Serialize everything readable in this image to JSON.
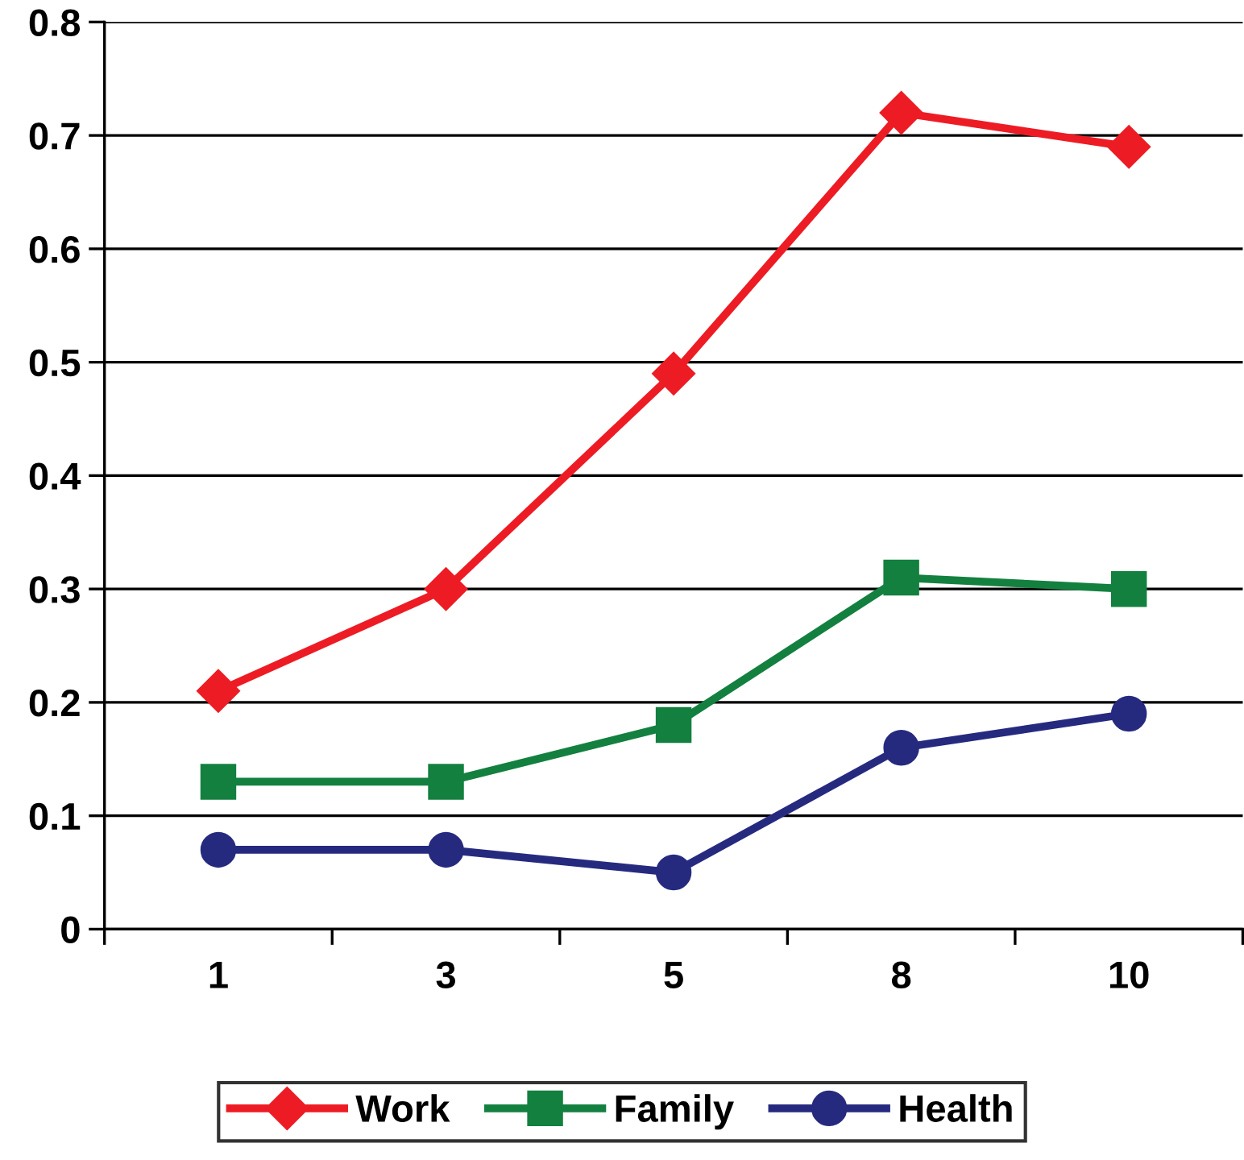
{
  "chart_data": {
    "type": "line",
    "categories": [
      "1",
      "3",
      "5",
      "8",
      "10"
    ],
    "series": [
      {
        "name": "Work",
        "color": "#ed1c24",
        "marker": "diamond",
        "values": [
          0.21,
          0.3,
          0.49,
          0.72,
          0.69
        ]
      },
      {
        "name": "Family",
        "color": "#13803f",
        "marker": "square",
        "values": [
          0.13,
          0.13,
          0.18,
          0.31,
          0.3
        ]
      },
      {
        "name": "Health",
        "color": "#262a7f",
        "marker": "circle",
        "values": [
          0.07,
          0.07,
          0.05,
          0.16,
          0.19
        ]
      }
    ],
    "ylim": [
      0,
      0.8
    ],
    "yticks": [
      {
        "value": 0,
        "label": "0"
      },
      0.1,
      0.2,
      0.3,
      0.4,
      0.5,
      0.6,
      0.7,
      0.8
    ],
    "grid": "y",
    "legend": "bottom",
    "line_style": "solid"
  }
}
